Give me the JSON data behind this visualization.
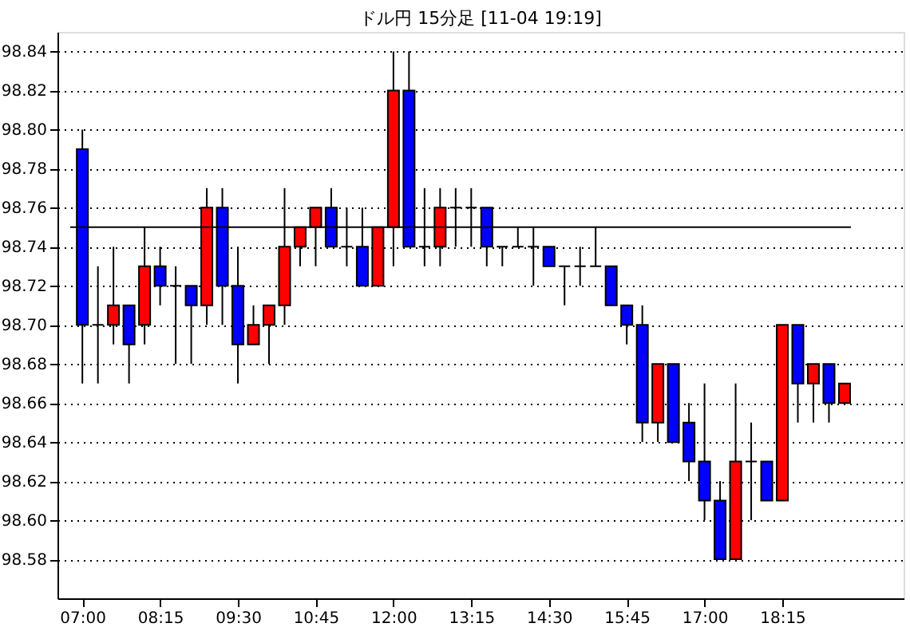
{
  "chart_data": {
    "type": "candlestick",
    "title": "ドル円 15分足 [11-04 19:19]",
    "x": [
      7,
      7.25,
      7.5,
      7.75,
      8,
      8.25,
      8.5,
      8.75,
      9,
      9.25,
      9.5,
      9.75,
      10,
      10.25,
      10.5,
      10.75,
      11,
      11.25,
      11.5,
      11.75,
      12,
      12.25,
      12.5,
      12.75,
      13,
      13.25,
      13.5,
      13.75,
      14,
      14.25,
      14.5,
      14.75,
      15,
      15.25,
      15.5,
      15.75,
      16,
      16.25,
      16.5,
      16.75,
      17,
      17.25,
      17.5,
      17.75,
      18,
      18.25,
      18.5,
      18.75,
      19,
      19.25
    ],
    "ohlc": [
      [
        98.79,
        98.8,
        98.67,
        98.7
      ],
      [
        98.7,
        98.73,
        98.67,
        98.7
      ],
      [
        98.7,
        98.74,
        98.69,
        98.71
      ],
      [
        98.71,
        98.71,
        98.67,
        98.69
      ],
      [
        98.7,
        98.75,
        98.69,
        98.73
      ],
      [
        98.73,
        98.74,
        98.71,
        98.72
      ],
      [
        98.72,
        98.73,
        98.68,
        98.72
      ],
      [
        98.72,
        98.72,
        98.68,
        98.71
      ],
      [
        98.71,
        98.77,
        98.7,
        98.76
      ],
      [
        98.76,
        98.77,
        98.7,
        98.72
      ],
      [
        98.72,
        98.74,
        98.67,
        98.69
      ],
      [
        98.69,
        98.71,
        98.69,
        98.7
      ],
      [
        98.7,
        98.71,
        98.68,
        98.71
      ],
      [
        98.71,
        98.77,
        98.7,
        98.74
      ],
      [
        98.74,
        98.75,
        98.73,
        98.75
      ],
      [
        98.75,
        98.76,
        98.73,
        98.76
      ],
      [
        98.76,
        98.77,
        98.74,
        98.74
      ],
      [
        98.74,
        98.76,
        98.73,
        98.74
      ],
      [
        98.74,
        98.76,
        98.72,
        98.72
      ],
      [
        98.72,
        98.75,
        98.72,
        98.75
      ],
      [
        98.75,
        98.84,
        98.73,
        98.82
      ],
      [
        98.82,
        98.84,
        98.74,
        98.74
      ],
      [
        98.74,
        98.77,
        98.73,
        98.74
      ],
      [
        98.74,
        98.77,
        98.73,
        98.76
      ],
      [
        98.76,
        98.77,
        98.74,
        98.76
      ],
      [
        98.76,
        98.77,
        98.74,
        98.76
      ],
      [
        98.76,
        98.76,
        98.73,
        98.74
      ],
      [
        98.74,
        98.74,
        98.73,
        98.74
      ],
      [
        98.74,
        98.75,
        98.74,
        98.74
      ],
      [
        98.74,
        98.75,
        98.72,
        98.74
      ],
      [
        98.74,
        98.74,
        98.73,
        98.73
      ],
      [
        98.73,
        98.73,
        98.71,
        98.73
      ],
      [
        98.73,
        98.74,
        98.72,
        98.73
      ],
      [
        98.73,
        98.75,
        98.73,
        98.73
      ],
      [
        98.73,
        98.73,
        98.71,
        98.71
      ],
      [
        98.71,
        98.71,
        98.69,
        98.7
      ],
      [
        98.7,
        98.71,
        98.64,
        98.65
      ],
      [
        98.65,
        98.68,
        98.64,
        98.68
      ],
      [
        98.68,
        98.68,
        98.64,
        98.64
      ],
      [
        98.65,
        98.66,
        98.62,
        98.63
      ],
      [
        98.63,
        98.67,
        98.6,
        98.61
      ],
      [
        98.61,
        98.62,
        98.58,
        98.58
      ],
      [
        98.58,
        98.67,
        98.58,
        98.63
      ],
      [
        98.63,
        98.65,
        98.6,
        98.63
      ],
      [
        98.63,
        98.63,
        98.61,
        98.61
      ],
      [
        98.61,
        98.7,
        98.61,
        98.7
      ],
      [
        98.7,
        98.7,
        98.65,
        98.67
      ],
      [
        98.67,
        98.68,
        98.65,
        98.68
      ],
      [
        98.68,
        98.68,
        98.65,
        98.66
      ],
      [
        98.66,
        98.67,
        98.66,
        98.67
      ]
    ],
    "colors": [
      "#0000ff",
      "#000000",
      "#ff0000",
      "#0000ff",
      "#ff0000",
      "#0000ff",
      "#000000",
      "#0000ff",
      "#ff0000",
      "#0000ff",
      "#0000ff",
      "#ff0000",
      "#ff0000",
      "#ff0000",
      "#ff0000",
      "#ff0000",
      "#0000ff",
      "#000000",
      "#0000ff",
      "#ff0000",
      "#ff0000",
      "#0000ff",
      "#000000",
      "#ff0000",
      "#000000",
      "#000000",
      "#0000ff",
      "#000000",
      "#000000",
      "#000000",
      "#0000ff",
      "#000000",
      "#000000",
      "#000000",
      "#0000ff",
      "#0000ff",
      "#0000ff",
      "#ff0000",
      "#0000ff",
      "#0000ff",
      "#0000ff",
      "#0000ff",
      "#ff0000",
      "#000000",
      "#0000ff",
      "#ff0000",
      "#0000ff",
      "#ff0000",
      "#0000ff",
      "#ff0000"
    ],
    "xlim": [
      6.6,
      20.2
    ],
    "xticks": [
      {
        "value": 7,
        "label": "07:00"
      },
      {
        "value": 8.25,
        "label": "08:15"
      },
      {
        "value": 9.5,
        "label": "09:30"
      },
      {
        "value": 10.75,
        "label": "10:45"
      },
      {
        "value": 12,
        "label": "12:00"
      },
      {
        "value": 13.25,
        "label": "13:15"
      },
      {
        "value": 14.5,
        "label": "14:30"
      },
      {
        "value": 15.75,
        "label": "15:45"
      },
      {
        "value": 17,
        "label": "17:00"
      },
      {
        "value": 18.25,
        "label": "18:15"
      }
    ],
    "ylim": [
      98.56,
      98.85
    ],
    "yticks": [
      {
        "value": 98.58,
        "label": "98.58"
      },
      {
        "value": 98.6,
        "label": "98.60"
      },
      {
        "value": 98.62,
        "label": "98.62"
      },
      {
        "value": 98.64,
        "label": "98.64"
      },
      {
        "value": 98.66,
        "label": "98.66"
      },
      {
        "value": 98.68,
        "label": "98.68"
      },
      {
        "value": 98.7,
        "label": "98.70"
      },
      {
        "value": 98.72,
        "label": "98.72"
      },
      {
        "value": 98.74,
        "label": "98.74"
      },
      {
        "value": 98.76,
        "label": "98.76"
      },
      {
        "value": 98.78,
        "label": "98.78"
      },
      {
        "value": 98.8,
        "label": "98.80"
      },
      {
        "value": 98.82,
        "label": "98.82"
      },
      {
        "value": 98.84,
        "label": "98.84"
      }
    ],
    "grid": "y",
    "ref_lines": [
      {
        "axis": "y",
        "value": 98.75,
        "color": "#000000"
      }
    ]
  }
}
